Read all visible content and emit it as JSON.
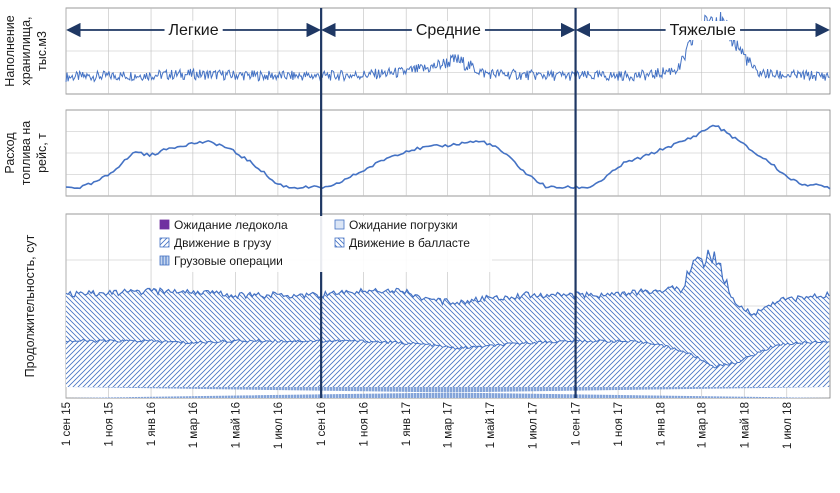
{
  "colors": {
    "line": "#4472c4",
    "hatch": "#4472c4",
    "grid": "#bfbfbf",
    "axis": "#7f7f7f",
    "divider": "#1f3864",
    "legend_purple": "#7030a0"
  },
  "chart_data": [
    {
      "type": "line",
      "ylabel": "Наполнение хранилища, тыс.м3",
      "ylabel_lines": [
        "Наполнение",
        "хранилища,",
        "тыс.м3"
      ],
      "period_labels": [
        "Легкие",
        "Средние",
        "Тяжелые"
      ],
      "period_boundaries_days": [
        0,
        366,
        731,
        1096
      ],
      "ylim": [
        0,
        10
      ],
      "series": [
        {
          "x_days": [
            0,
            60,
            120,
            180,
            240,
            300,
            366,
            420,
            480,
            520,
            560,
            600,
            660,
            731,
            780,
            840,
            880,
            900,
            930,
            960,
            990,
            1020,
            1096
          ],
          "values": [
            2.0,
            2.1,
            2.2,
            2.3,
            2.2,
            2.1,
            2.1,
            2.2,
            2.5,
            3.0,
            4.0,
            2.4,
            2.2,
            2.1,
            2.1,
            2.2,
            3.0,
            6.5,
            9.3,
            6.0,
            2.5,
            2.2,
            2.1
          ]
        }
      ]
    },
    {
      "type": "line",
      "ylabel": "Расход топлива на рейс, т",
      "ylabel_lines": [
        "Расход",
        "топлива на",
        "рейс, т"
      ],
      "ylim": [
        0,
        10
      ],
      "series": [
        {
          "x_days": [
            0,
            20,
            40,
            60,
            90,
            100,
            120,
            150,
            180,
            200,
            220,
            240,
            260,
            280,
            300,
            320,
            366,
            380,
            400,
            430,
            460,
            490,
            520,
            550,
            580,
            600,
            620,
            640,
            660,
            690,
            731,
            750,
            770,
            800,
            830,
            860,
            880,
            900,
            930,
            960,
            990,
            1010,
            1030,
            1050,
            1096
          ],
          "values": [
            1.0,
            1.0,
            1.5,
            2.4,
            4.5,
            5.2,
            4.7,
            5.6,
            6.1,
            6.3,
            6.0,
            5.2,
            4.2,
            3.0,
            1.5,
            1.0,
            1.0,
            1.0,
            1.9,
            3.1,
            4.4,
            5.3,
            5.7,
            5.9,
            6.3,
            6.3,
            5.5,
            4.2,
            2.6,
            1.0,
            1.0,
            1.0,
            1.9,
            3.8,
            4.6,
            5.6,
            6.2,
            6.9,
            8.3,
            6.7,
            4.9,
            3.9,
            2.5,
            1.5,
            1.0
          ]
        }
      ]
    },
    {
      "type": "area",
      "ylabel": "Продолжительность, сут",
      "ylim": [
        0,
        10
      ],
      "legend": [
        {
          "label": "Ожидание ледокола",
          "pattern": "solid-purple"
        },
        {
          "label": "Ожидание погрузки",
          "pattern": "light"
        },
        {
          "label": "Движение в грузу",
          "pattern": "diag-right"
        },
        {
          "label": "Движение в балласте",
          "pattern": "diag-left"
        },
        {
          "label": "Грузовые операции",
          "pattern": "vertical"
        }
      ],
      "stack_boundaries": {
        "x_days": [
          0,
          60,
          120,
          180,
          240,
          300,
          366,
          420,
          480,
          520,
          560,
          600,
          660,
          731,
          780,
          840,
          880,
          900,
          930,
          960,
          990,
          1020,
          1096
        ],
        "cargo_ops_top": [
          0.6,
          0.6,
          0.6,
          0.6,
          0.6,
          0.6,
          0.6,
          0.6,
          0.6,
          0.6,
          0.6,
          0.6,
          0.6,
          0.6,
          0.6,
          0.6,
          0.6,
          0.6,
          0.6,
          0.6,
          0.6,
          0.6,
          0.6
        ],
        "loaded_top": [
          3.1,
          3.1,
          3.1,
          3.0,
          3.1,
          3.1,
          3.1,
          3.1,
          3.0,
          2.9,
          2.7,
          2.8,
          3.0,
          3.1,
          3.1,
          3.0,
          2.6,
          2.3,
          1.7,
          1.9,
          2.4,
          2.9,
          3.1
        ],
        "ballast_top": [
          5.6,
          5.7,
          5.8,
          5.8,
          5.6,
          5.6,
          5.6,
          5.8,
          5.9,
          5.3,
          5.2,
          5.4,
          5.6,
          5.6,
          5.6,
          5.8,
          6.0,
          7.2,
          7.8,
          5.0,
          4.6,
          5.3,
          5.6
        ]
      }
    }
  ],
  "x_axis": {
    "tick_labels": [
      "1 сен 15",
      "1 ноя 15",
      "1 янв 16",
      "1 мар 16",
      "1 май 16",
      "1 июл 16",
      "1 сен 16",
      "1 ноя 16",
      "1 янв 17",
      "1 мар 17",
      "1 май 17",
      "1 июл 17",
      "1 сен 17",
      "1 ноя 17",
      "1 янв 18",
      "1 мар 18",
      "1 май 18",
      "1 июл 18"
    ],
    "tick_days": [
      0,
      61,
      122,
      182,
      243,
      304,
      366,
      427,
      488,
      547,
      608,
      669,
      731,
      792,
      853,
      912,
      973,
      1034
    ],
    "range_days": [
      0,
      1096
    ]
  }
}
